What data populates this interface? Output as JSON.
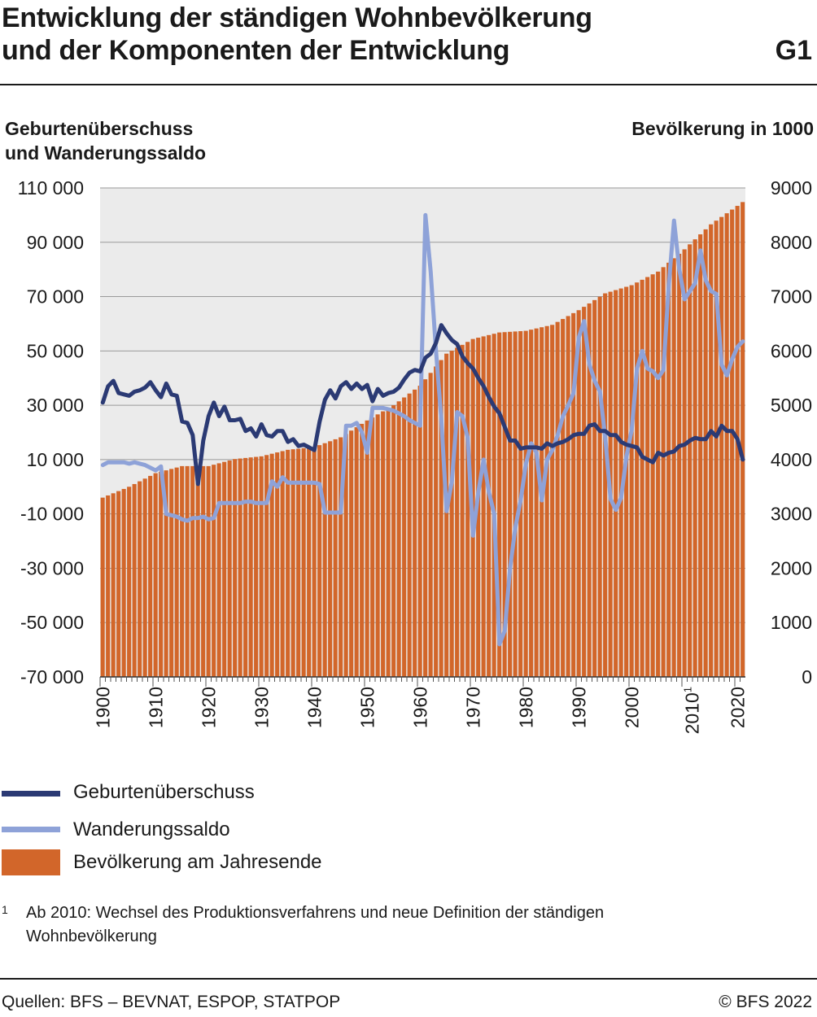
{
  "title_line1": "Entwicklung der ständigen Wohnbevölkerung",
  "title_line2": "und der Komponenten der Entwicklung",
  "figure_code": "G1",
  "left_axis_title_line1": "Geburtenüberschuss",
  "left_axis_title_line2": "und Wanderungssaldo",
  "right_axis_title": "Bevölkerung in 1000",
  "footnote": {
    "mark": "1",
    "text": "Ab 2010: Wechsel des Produktionsverfahrens und neue Definition der ständigen Wohnbevölkerung"
  },
  "source": "Quellen: BFS – BEVNAT, ESPOP, STATPOP",
  "copyright": "© BFS 2022",
  "colors": {
    "births": "#2b3a74",
    "migration": "#8ea2d8",
    "population": "#d2662a",
    "plot_bg": "#ebebeb",
    "grid": "#9a9a9a"
  },
  "chart_data": {
    "type": "bar+line",
    "x_start": 1900,
    "x_end": 2021,
    "x_ticks": [
      "1900",
      "1910",
      "1920",
      "1930",
      "1940",
      "1950",
      "1960",
      "1970",
      "1980",
      "1990",
      "2000",
      "2010",
      "2020"
    ],
    "x_tick_superscript": {
      "2010": "1"
    },
    "left_axis": {
      "min": -70000,
      "max": 110000,
      "ticks": [
        "110 000",
        "90 000",
        "70 000",
        "50 000",
        "30 000",
        "10 000",
        "-10 000",
        "-30 000",
        "-50 000",
        "-70 000"
      ]
    },
    "right_axis": {
      "min": 0,
      "max": 9000,
      "ticks": [
        "9000",
        "8000",
        "7000",
        "6000",
        "5000",
        "4000",
        "3000",
        "2000",
        "1000",
        "0"
      ]
    },
    "legend_placement": "bottom",
    "series": [
      {
        "name": "Geburtenüberschuss",
        "kind": "line",
        "axis": "left",
        "anchors": [
          [
            1900,
            31000
          ],
          [
            1901,
            37000
          ],
          [
            1902,
            39000
          ],
          [
            1903,
            34500
          ],
          [
            1904,
            34000
          ],
          [
            1905,
            33500
          ],
          [
            1906,
            35000
          ],
          [
            1907,
            35500
          ],
          [
            1908,
            36500
          ],
          [
            1909,
            38500
          ],
          [
            1910,
            35500
          ],
          [
            1911,
            33000
          ],
          [
            1912,
            38000
          ],
          [
            1913,
            34000
          ],
          [
            1914,
            33500
          ],
          [
            1915,
            24000
          ],
          [
            1916,
            23500
          ],
          [
            1917,
            19000
          ],
          [
            1918,
            1000
          ],
          [
            1919,
            17000
          ],
          [
            1920,
            26000
          ],
          [
            1921,
            31000
          ],
          [
            1922,
            26000
          ],
          [
            1923,
            29500
          ],
          [
            1924,
            24500
          ],
          [
            1925,
            24500
          ],
          [
            1926,
            25000
          ],
          [
            1927,
            20500
          ],
          [
            1928,
            21500
          ],
          [
            1929,
            18500
          ],
          [
            1930,
            23000
          ],
          [
            1931,
            19000
          ],
          [
            1932,
            18500
          ],
          [
            1933,
            20500
          ],
          [
            1934,
            20500
          ],
          [
            1935,
            16500
          ],
          [
            1936,
            17500
          ],
          [
            1937,
            15000
          ],
          [
            1938,
            15500
          ],
          [
            1939,
            14500
          ],
          [
            1940,
            13500
          ],
          [
            1941,
            24000
          ],
          [
            1942,
            32000
          ],
          [
            1943,
            35500
          ],
          [
            1944,
            32500
          ],
          [
            1945,
            37000
          ],
          [
            1946,
            38500
          ],
          [
            1947,
            36000
          ],
          [
            1948,
            38000
          ],
          [
            1949,
            36000
          ],
          [
            1950,
            37500
          ],
          [
            1951,
            31500
          ],
          [
            1952,
            36000
          ],
          [
            1953,
            33500
          ],
          [
            1954,
            34500
          ],
          [
            1955,
            35000
          ],
          [
            1956,
            36500
          ],
          [
            1957,
            39500
          ],
          [
            1958,
            42000
          ],
          [
            1959,
            43000
          ],
          [
            1960,
            42500
          ],
          [
            1961,
            47500
          ],
          [
            1962,
            49000
          ],
          [
            1963,
            53000
          ],
          [
            1964,
            59500
          ],
          [
            1965,
            56500
          ],
          [
            1966,
            54000
          ],
          [
            1967,
            52500
          ],
          [
            1968,
            48000
          ],
          [
            1969,
            45500
          ],
          [
            1970,
            43500
          ],
          [
            1971,
            40000
          ],
          [
            1972,
            37000
          ],
          [
            1973,
            33000
          ],
          [
            1974,
            29500
          ],
          [
            1975,
            27000
          ],
          [
            1976,
            22000
          ],
          [
            1977,
            17000
          ],
          [
            1978,
            17000
          ],
          [
            1979,
            14000
          ],
          [
            1980,
            14500
          ],
          [
            1981,
            14500
          ],
          [
            1982,
            14500
          ],
          [
            1983,
            14000
          ],
          [
            1984,
            16000
          ],
          [
            1985,
            15000
          ],
          [
            1986,
            16000
          ],
          [
            1987,
            16500
          ],
          [
            1988,
            17500
          ],
          [
            1989,
            19000
          ],
          [
            1990,
            19500
          ],
          [
            1991,
            19500
          ],
          [
            1992,
            22500
          ],
          [
            1993,
            23000
          ],
          [
            1994,
            20500
          ],
          [
            1995,
            20500
          ],
          [
            1996,
            19000
          ],
          [
            1997,
            19000
          ],
          [
            1998,
            16500
          ],
          [
            1999,
            15500
          ],
          [
            2000,
            15000
          ],
          [
            2001,
            14500
          ],
          [
            2002,
            11000
          ],
          [
            2003,
            10000
          ],
          [
            2004,
            9000
          ],
          [
            2005,
            12500
          ],
          [
            2006,
            11500
          ],
          [
            2007,
            12500
          ],
          [
            2008,
            13000
          ],
          [
            2009,
            15000
          ],
          [
            2010,
            15500
          ],
          [
            2011,
            17000
          ],
          [
            2012,
            18000
          ],
          [
            2013,
            17500
          ],
          [
            2014,
            17500
          ],
          [
            2015,
            20500
          ],
          [
            2016,
            18500
          ],
          [
            2017,
            22500
          ],
          [
            2018,
            20500
          ],
          [
            2019,
            20500
          ],
          [
            2020,
            17500
          ],
          [
            2021,
            10000
          ]
        ]
      },
      {
        "name": "Wanderungssaldo",
        "kind": "line",
        "axis": "left",
        "anchors": [
          [
            1900,
            8000
          ],
          [
            1901,
            9000
          ],
          [
            1902,
            9000
          ],
          [
            1903,
            9000
          ],
          [
            1904,
            9000
          ],
          [
            1905,
            8500
          ],
          [
            1906,
            9000
          ],
          [
            1907,
            8500
          ],
          [
            1908,
            8000
          ],
          [
            1909,
            7000
          ],
          [
            1910,
            6000
          ],
          [
            1911,
            7500
          ],
          [
            1912,
            -10000
          ],
          [
            1913,
            -10500
          ],
          [
            1914,
            -11000
          ],
          [
            1915,
            -12000
          ],
          [
            1916,
            -12500
          ],
          [
            1917,
            -11500
          ],
          [
            1918,
            -11500
          ],
          [
            1919,
            -11000
          ],
          [
            1920,
            -12000
          ],
          [
            1921,
            -11500
          ],
          [
            1922,
            -6000
          ],
          [
            1923,
            -6000
          ],
          [
            1924,
            -6000
          ],
          [
            1925,
            -6000
          ],
          [
            1926,
            -6000
          ],
          [
            1927,
            -5500
          ],
          [
            1928,
            -5500
          ],
          [
            1929,
            -6000
          ],
          [
            1930,
            -6000
          ],
          [
            1931,
            -6000
          ],
          [
            1932,
            2000
          ],
          [
            1933,
            0
          ],
          [
            1934,
            3500
          ],
          [
            1935,
            1500
          ],
          [
            1936,
            1500
          ],
          [
            1937,
            1500
          ],
          [
            1938,
            1500
          ],
          [
            1939,
            1500
          ],
          [
            1940,
            1500
          ],
          [
            1941,
            1000
          ],
          [
            1942,
            -9500
          ],
          [
            1943,
            -9500
          ],
          [
            1944,
            -9500
          ],
          [
            1945,
            -9500
          ],
          [
            1946,
            22500
          ],
          [
            1947,
            22500
          ],
          [
            1948,
            23500
          ],
          [
            1949,
            20000
          ],
          [
            1950,
            12500
          ],
          [
            1951,
            29000
          ],
          [
            1952,
            29000
          ],
          [
            1953,
            29000
          ],
          [
            1954,
            28500
          ],
          [
            1955,
            28000
          ],
          [
            1956,
            27000
          ],
          [
            1957,
            26000
          ],
          [
            1958,
            24500
          ],
          [
            1959,
            23500
          ],
          [
            1960,
            22500
          ],
          [
            1961,
            100000
          ],
          [
            1962,
            79000
          ],
          [
            1963,
            50000
          ],
          [
            1964,
            25000
          ],
          [
            1965,
            -9000
          ],
          [
            1966,
            2000
          ],
          [
            1967,
            27500
          ],
          [
            1968,
            26000
          ],
          [
            1969,
            18000
          ],
          [
            1970,
            -18000
          ],
          [
            1971,
            -2000
          ],
          [
            1972,
            10000
          ],
          [
            1973,
            -2000
          ],
          [
            1974,
            -10000
          ],
          [
            1975,
            -58000
          ],
          [
            1976,
            -53000
          ],
          [
            1977,
            -30000
          ],
          [
            1978,
            -15000
          ],
          [
            1979,
            -5000
          ],
          [
            1980,
            8500
          ],
          [
            1981,
            16000
          ],
          [
            1982,
            12500
          ],
          [
            1983,
            -5000
          ],
          [
            1984,
            10000
          ],
          [
            1985,
            13500
          ],
          [
            1986,
            19000
          ],
          [
            1987,
            26000
          ],
          [
            1988,
            30000
          ],
          [
            1989,
            34500
          ],
          [
            1990,
            55000
          ],
          [
            1991,
            61000
          ],
          [
            1992,
            45000
          ],
          [
            1993,
            39000
          ],
          [
            1994,
            35000
          ],
          [
            1995,
            18000
          ],
          [
            1996,
            -4500
          ],
          [
            1997,
            -8500
          ],
          [
            1998,
            -4000
          ],
          [
            1999,
            11000
          ],
          [
            2000,
            21000
          ],
          [
            2001,
            43500
          ],
          [
            2002,
            50000
          ],
          [
            2003,
            43500
          ],
          [
            2004,
            42500
          ],
          [
            2005,
            40000
          ],
          [
            2006,
            43000
          ],
          [
            2007,
            74000
          ],
          [
            2008,
            98000
          ],
          [
            2009,
            80000
          ],
          [
            2010,
            69000
          ],
          [
            2011,
            72000
          ],
          [
            2012,
            75000
          ],
          [
            2013,
            87000
          ],
          [
            2014,
            76000
          ],
          [
            2015,
            72000
          ],
          [
            2016,
            71000
          ],
          [
            2017,
            45000
          ],
          [
            2018,
            41000
          ],
          [
            2019,
            47000
          ],
          [
            2020,
            51500
          ],
          [
            2021,
            53500
          ]
        ]
      },
      {
        "name": "Bevölkerung am Jahresende",
        "kind": "bar",
        "axis": "right",
        "anchors": [
          [
            1900,
            3300
          ],
          [
            1905,
            3500
          ],
          [
            1910,
            3750
          ],
          [
            1915,
            3880
          ],
          [
            1920,
            3880
          ],
          [
            1925,
            4010
          ],
          [
            1930,
            4060
          ],
          [
            1935,
            4180
          ],
          [
            1940,
            4230
          ],
          [
            1945,
            4410
          ],
          [
            1950,
            4720
          ],
          [
            1955,
            5000
          ],
          [
            1960,
            5360
          ],
          [
            1965,
            5950
          ],
          [
            1970,
            6220
          ],
          [
            1975,
            6340
          ],
          [
            1980,
            6370
          ],
          [
            1985,
            6480
          ],
          [
            1990,
            6750
          ],
          [
            1995,
            7060
          ],
          [
            2000,
            7210
          ],
          [
            2005,
            7460
          ],
          [
            2010,
            7870
          ],
          [
            2015,
            8330
          ],
          [
            2020,
            8670
          ],
          [
            2021,
            8740
          ]
        ]
      }
    ]
  }
}
